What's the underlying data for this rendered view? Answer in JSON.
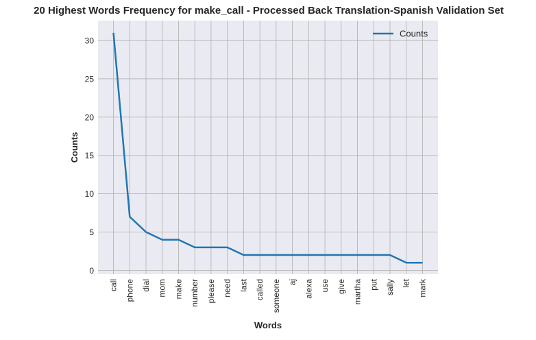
{
  "chart_data": {
    "type": "line",
    "title": "20 Highest Words Frequency for make_call - Processed Back Translation-Spanish Validation Set",
    "xlabel": "Words",
    "ylabel": "Counts",
    "categories": [
      "call",
      "phone",
      "dial",
      "mom",
      "make",
      "number",
      "please",
      "need",
      "last",
      "called",
      "someone",
      "aj",
      "alexa",
      "use",
      "give",
      "martha",
      "put",
      "sally",
      "let",
      "mark"
    ],
    "series": [
      {
        "name": "Counts",
        "values": [
          31,
          7,
          5,
          4,
          4,
          3,
          3,
          3,
          2,
          2,
          2,
          2,
          2,
          2,
          2,
          2,
          2,
          2,
          1,
          1
        ]
      }
    ],
    "ylim": [
      -0.5,
      32.6
    ],
    "yticks": [
      0,
      5,
      10,
      15,
      20,
      25,
      30
    ],
    "grid": true,
    "legend_position": "top-right",
    "colors": {
      "line": "#1f77b4",
      "plot_bg": "#eaeaf2",
      "grid": "#b0b0b0"
    }
  }
}
